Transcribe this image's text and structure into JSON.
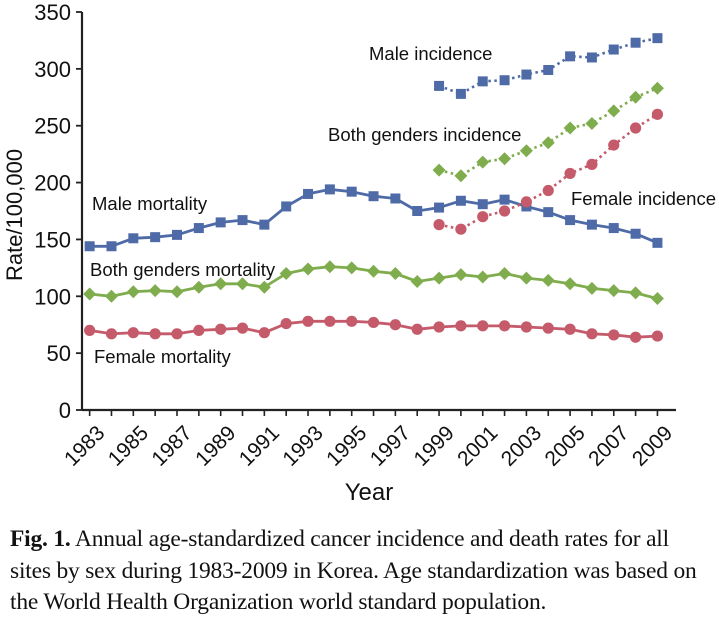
{
  "chart_data": {
    "type": "line",
    "title": "",
    "xlabel": "Year",
    "ylabel": "Rate/100,000",
    "ylim": [
      0,
      350
    ],
    "yticks": [
      0,
      50,
      100,
      150,
      200,
      250,
      300,
      350
    ],
    "x": [
      1983,
      1984,
      1985,
      1986,
      1987,
      1988,
      1989,
      1990,
      1991,
      1992,
      1993,
      1994,
      1995,
      1996,
      1997,
      1998,
      1999,
      2000,
      2001,
      2002,
      2003,
      2004,
      2005,
      2006,
      2007,
      2008,
      2009
    ],
    "xtick_labels": [
      "1983",
      "1985",
      "1987",
      "1989",
      "1991",
      "1993",
      "1995",
      "1997",
      "1999",
      "2001",
      "2003",
      "2005",
      "2007",
      "2009"
    ],
    "grid": false,
    "legend": "inline labels",
    "series": [
      {
        "name": "Male mortality",
        "color": "#4f6ba7",
        "marker": "square",
        "style": "solid",
        "x": [
          1983,
          1984,
          1985,
          1986,
          1987,
          1988,
          1989,
          1990,
          1991,
          1992,
          1993,
          1994,
          1995,
          1996,
          1997,
          1998,
          1999,
          2000,
          2001,
          2002,
          2003,
          2004,
          2005,
          2006,
          2007,
          2008,
          2009
        ],
        "values": [
          144,
          144,
          151,
          152,
          154,
          160,
          165,
          167,
          163,
          179,
          190,
          194,
          192,
          188,
          186,
          175,
          178,
          184,
          181,
          185,
          179,
          174,
          167,
          163,
          160,
          155,
          147
        ]
      },
      {
        "name": "Both genders mortality",
        "color": "#7fad4e",
        "marker": "diamond",
        "style": "solid",
        "x": [
          1983,
          1984,
          1985,
          1986,
          1987,
          1988,
          1989,
          1990,
          1991,
          1992,
          1993,
          1994,
          1995,
          1996,
          1997,
          1998,
          1999,
          2000,
          2001,
          2002,
          2003,
          2004,
          2005,
          2006,
          2007,
          2008,
          2009
        ],
        "values": [
          102,
          100,
          104,
          105,
          104,
          108,
          111,
          111,
          108,
          120,
          124,
          126,
          125,
          122,
          120,
          113,
          116,
          119,
          117,
          120,
          116,
          114,
          111,
          107,
          105,
          103,
          98
        ]
      },
      {
        "name": "Female mortality",
        "color": "#c45a6a",
        "marker": "circle",
        "style": "solid",
        "x": [
          1983,
          1984,
          1985,
          1986,
          1987,
          1988,
          1989,
          1990,
          1991,
          1992,
          1993,
          1994,
          1995,
          1996,
          1997,
          1998,
          1999,
          2000,
          2001,
          2002,
          2003,
          2004,
          2005,
          2006,
          2007,
          2008,
          2009
        ],
        "values": [
          70,
          67,
          68,
          67,
          67,
          70,
          71,
          72,
          68,
          76,
          78,
          78,
          78,
          77,
          75,
          71,
          73,
          74,
          74,
          74,
          73,
          72,
          71,
          67,
          66,
          64,
          65
        ]
      },
      {
        "name": "Male incidence",
        "color": "#4f6ba7",
        "marker": "square",
        "style": "dotted",
        "x": [
          1999,
          2000,
          2001,
          2002,
          2003,
          2004,
          2005,
          2006,
          2007,
          2008,
          2009
        ],
        "values": [
          285,
          278,
          289,
          290,
          295,
          299,
          311,
          310,
          317,
          323,
          327
        ]
      },
      {
        "name": "Both genders incidence",
        "color": "#7fad4e",
        "marker": "diamond",
        "style": "dotted",
        "x": [
          1999,
          2000,
          2001,
          2002,
          2003,
          2004,
          2005,
          2006,
          2007,
          2008,
          2009
        ],
        "values": [
          211,
          206,
          218,
          221,
          228,
          235,
          248,
          252,
          263,
          275,
          283
        ]
      },
      {
        "name": "Female incidence",
        "color": "#c45a6a",
        "marker": "circle",
        "style": "dotted",
        "x": [
          1999,
          2000,
          2001,
          2002,
          2003,
          2004,
          2005,
          2006,
          2007,
          2008,
          2009
        ],
        "values": [
          163,
          159,
          170,
          175,
          183,
          193,
          208,
          216,
          233,
          248,
          260
        ]
      }
    ]
  },
  "caption": {
    "label": "Fig. 1.",
    "text": " Annual age-standardized cancer incidence and death rates for all sites by sex during 1983-2009 in Korea. Age standardization was based on the World Health Organization world standard population."
  }
}
